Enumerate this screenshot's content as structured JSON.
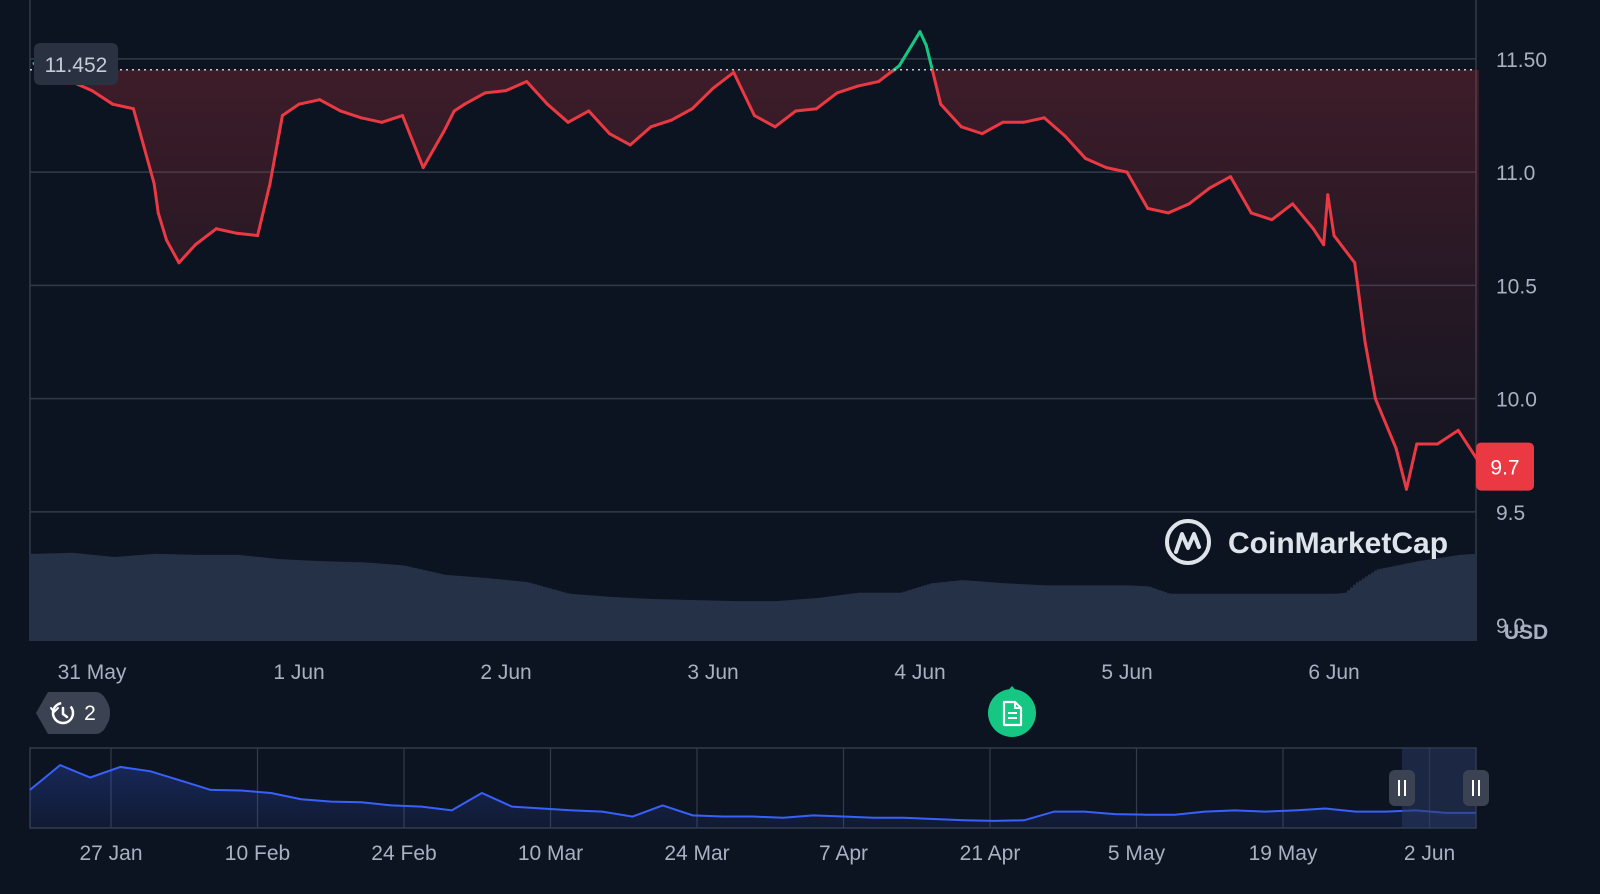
{
  "chart_data": {
    "type": "line",
    "title": "",
    "xlabel": "",
    "ylabel": "",
    "currency": "USD",
    "ylim": [
      8.93,
      11.76
    ],
    "yticks": [
      "11.50",
      "11.0",
      "10.5",
      "10.0",
      "9.5",
      "9.0"
    ],
    "ytick_values": [
      11.5,
      11.0,
      10.5,
      10.0,
      9.5,
      9.0
    ],
    "reference_price": 11.452,
    "reference_label": "11.452",
    "current_price": 9.7,
    "current_label": "9.7",
    "x_categories": [
      "31 May",
      "1 Jun",
      "2 Jun",
      "3 Jun",
      "4 Jun",
      "5 Jun",
      "6 Jun"
    ],
    "series": [
      {
        "x": [
          -0.28,
          -0.2,
          -0.1,
          0.0,
          0.1,
          0.2,
          0.3,
          0.32,
          0.36,
          0.42,
          0.5,
          0.6,
          0.7,
          0.8,
          0.86,
          0.92,
          1.0,
          1.1,
          1.2,
          1.3,
          1.4,
          1.5,
          1.6,
          1.7,
          1.75,
          1.8,
          1.9,
          2.0,
          2.1,
          2.2,
          2.3,
          2.4,
          2.5,
          2.6,
          2.7,
          2.8,
          2.9,
          3.0,
          3.1,
          3.2,
          3.3,
          3.4,
          3.5,
          3.6,
          3.7,
          3.8,
          3.9,
          4.0,
          4.03,
          4.06,
          4.1,
          4.2,
          4.3,
          4.4,
          4.5,
          4.6,
          4.7,
          4.8,
          4.9,
          5.0,
          5.1,
          5.2,
          5.3,
          5.4,
          5.5,
          5.6,
          5.7,
          5.8,
          5.9,
          5.95,
          5.97,
          6.0,
          6.1,
          6.15,
          6.2,
          6.3,
          6.35,
          6.4,
          6.5,
          6.6,
          6.7
        ],
        "values": [
          11.48,
          11.5,
          11.4,
          11.36,
          11.3,
          11.28,
          10.95,
          10.82,
          10.7,
          10.6,
          10.68,
          10.75,
          10.73,
          10.72,
          10.95,
          11.25,
          11.3,
          11.32,
          11.27,
          11.24,
          11.22,
          11.25,
          11.02,
          11.18,
          11.27,
          11.3,
          11.35,
          11.36,
          11.4,
          11.3,
          11.22,
          11.27,
          11.17,
          11.12,
          11.2,
          11.23,
          11.28,
          11.37,
          11.44,
          11.25,
          11.2,
          11.27,
          11.28,
          11.35,
          11.38,
          11.4,
          11.47,
          11.62,
          11.56,
          11.45,
          11.3,
          11.2,
          11.17,
          11.22,
          11.22,
          11.24,
          11.16,
          11.06,
          11.02,
          11.0,
          10.84,
          10.82,
          10.86,
          10.93,
          10.98,
          10.82,
          10.79,
          10.86,
          10.75,
          10.68,
          10.9,
          10.72,
          10.6,
          10.25,
          10.0,
          9.78,
          9.6,
          9.8,
          9.8,
          9.86,
          9.72
        ],
        "above_reference_color": "#16c784",
        "below_reference_color": "#ea3943"
      }
    ],
    "volume": {
      "name": "volume",
      "x": [
        -0.28,
        -0.1,
        0.1,
        0.3,
        0.5,
        0.7,
        0.9,
        1.1,
        1.3,
        1.5,
        1.7,
        1.9,
        2.1,
        2.3,
        2.5,
        2.7,
        2.9,
        3.1,
        3.3,
        3.5,
        3.7,
        3.9,
        4.05,
        4.2,
        4.4,
        4.6,
        4.8,
        5.0,
        5.1,
        5.2,
        5.4,
        5.6,
        5.8,
        6.0,
        6.05,
        6.1,
        6.2,
        6.4,
        6.6,
        6.75
      ],
      "values": [
        0.83,
        0.84,
        0.8,
        0.83,
        0.82,
        0.82,
        0.78,
        0.76,
        0.75,
        0.72,
        0.63,
        0.6,
        0.56,
        0.45,
        0.42,
        0.4,
        0.39,
        0.38,
        0.38,
        0.41,
        0.46,
        0.46,
        0.55,
        0.58,
        0.55,
        0.53,
        0.53,
        0.53,
        0.52,
        0.45,
        0.45,
        0.45,
        0.45,
        0.45,
        0.46,
        0.55,
        0.68,
        0.76,
        0.82,
        0.84
      ]
    },
    "navigator": {
      "labels": [
        "27 Jan",
        "10 Feb",
        "24 Feb",
        "10 Mar",
        "24 Mar",
        "7 Apr",
        "21 Apr",
        "5 May",
        "19 May",
        "2 Jun"
      ],
      "values": [
        0.55,
        0.95,
        0.75,
        0.92,
        0.85,
        0.7,
        0.55,
        0.54,
        0.5,
        0.4,
        0.36,
        0.35,
        0.3,
        0.28,
        0.22,
        0.5,
        0.28,
        0.25,
        0.22,
        0.2,
        0.12,
        0.3,
        0.14,
        0.12,
        0.12,
        0.1,
        0.14,
        0.12,
        0.1,
        0.1,
        0.08,
        0.06,
        0.05,
        0.06,
        0.2,
        0.2,
        0.16,
        0.15,
        0.15,
        0.2,
        0.22,
        0.2,
        0.22,
        0.25,
        0.2,
        0.2,
        0.22,
        0.18,
        0.18
      ]
    }
  },
  "branding": {
    "name": "CoinMarketCap"
  },
  "history_badge": {
    "count": "2",
    "icon": "history-icon"
  },
  "event_marker": {
    "icon": "document-icon",
    "color": "#16c784"
  },
  "colors": {
    "background": "#0d1421",
    "grid": "#323b4a",
    "up": "#16c784",
    "down": "#ea3943",
    "volume": "#253147",
    "navigator_line": "#3861fb"
  }
}
